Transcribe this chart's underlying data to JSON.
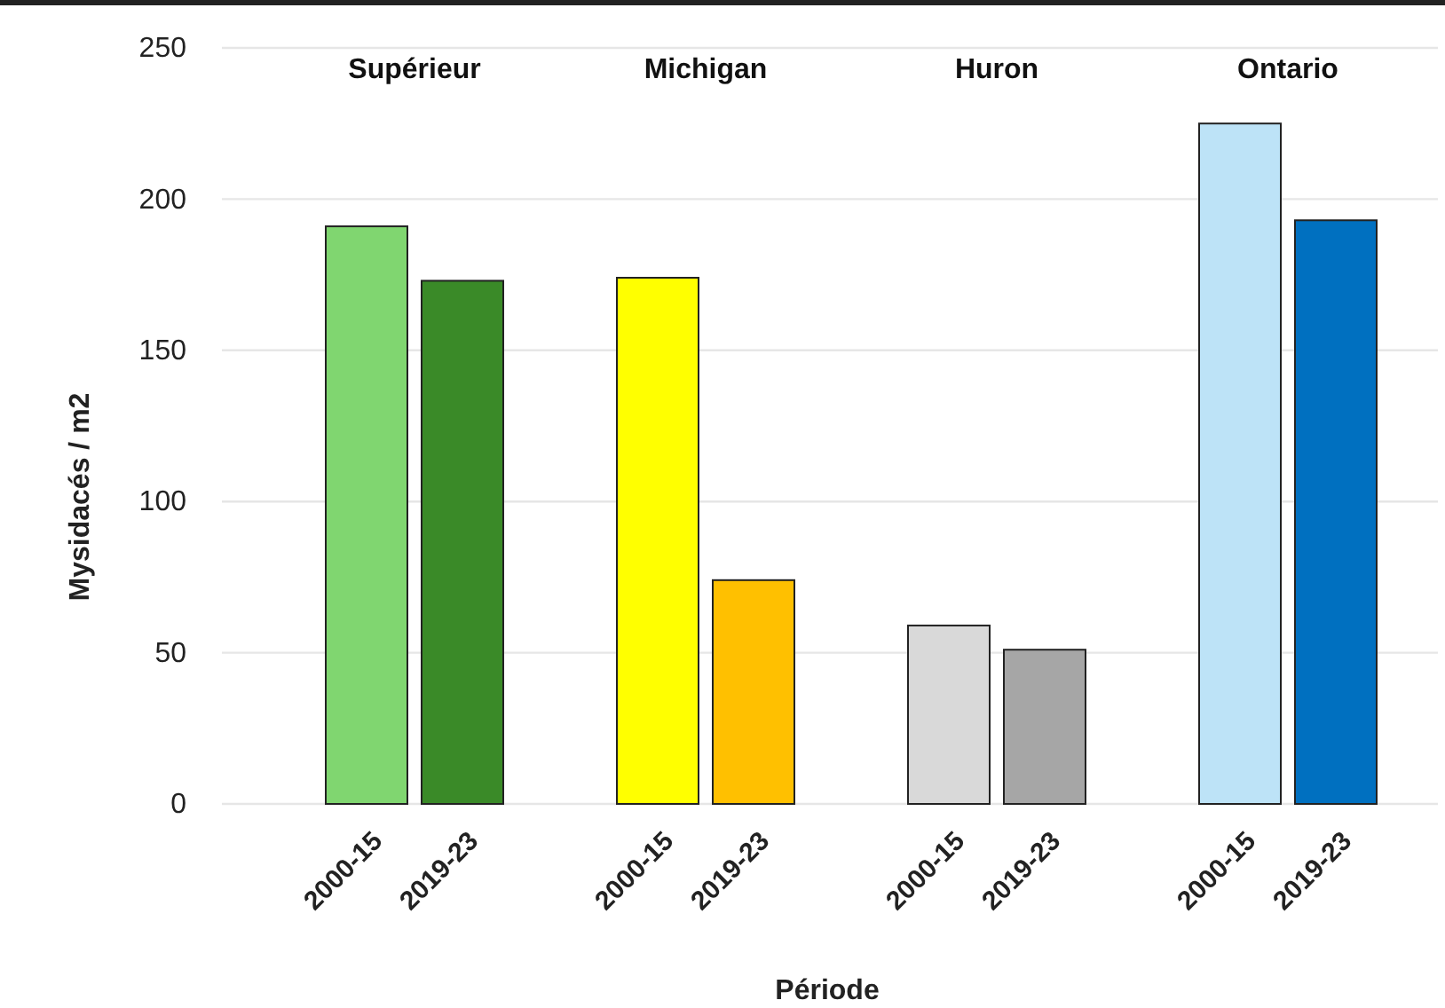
{
  "chart_data": {
    "type": "bar",
    "xlabel": "Période",
    "ylabel": "Mysidacés / m2",
    "categories": [
      "2000-15",
      "2019-23",
      "2000-15",
      "2019-23",
      "2000-15",
      "2019-23",
      "2000-15",
      "2019-23"
    ],
    "values": [
      191,
      173,
      174,
      74,
      59,
      51,
      225,
      193
    ],
    "colors": [
      "#80d670",
      "#3a8a28",
      "#ffff00",
      "#ffc000",
      "#d9d9d9",
      "#a6a6a6",
      "#bde3f7",
      "#0070c0"
    ],
    "annotations": [
      "Supérieur",
      "Michigan",
      "Huron",
      "Ontario"
    ],
    "ylim": [
      0,
      250
    ],
    "yticks": [
      0,
      50,
      100,
      150,
      200,
      250
    ],
    "grid": "y"
  }
}
